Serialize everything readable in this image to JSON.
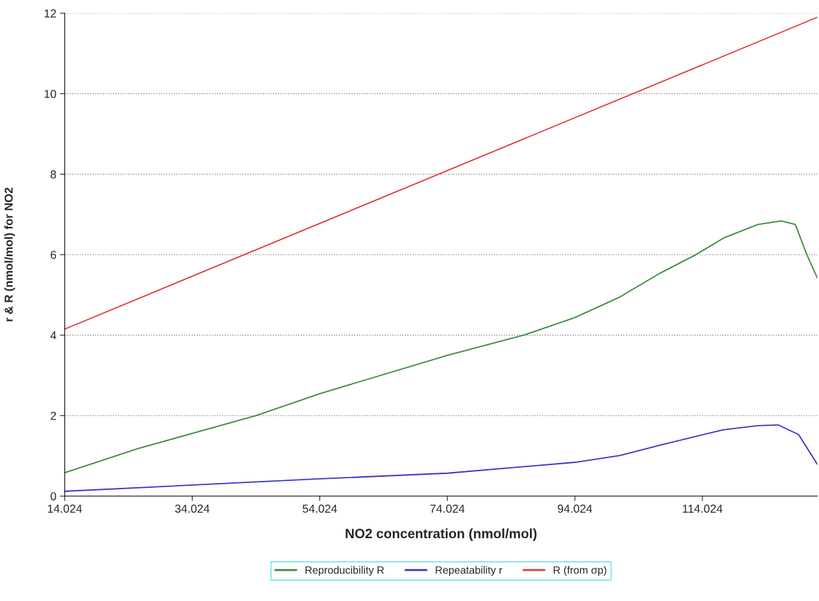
{
  "chart_data": {
    "type": "line",
    "xlabel": "NO2 concentration (nmol/mol)",
    "ylabel": "r & R (nmol/mol) for NO2",
    "xlim": [
      14.024,
      132.05
    ],
    "xticks": [
      14.024,
      34.024,
      54.024,
      74.024,
      94.024,
      114.024
    ],
    "ylim": [
      0,
      12
    ],
    "yticks": [
      0,
      2,
      4,
      6,
      8,
      10,
      12
    ],
    "grid": "y",
    "legend": "bottom",
    "line_style": "solid",
    "marker": "none",
    "series": [
      {
        "name": "Reproducibility R",
        "color": "#3a8a3a",
        "x": [
          14.024,
          25.5,
          44.0,
          54.09,
          74.07,
          86.0,
          94.05,
          101.1,
          107.5,
          113.0,
          117.3,
          122.7,
          126.4,
          128.6,
          130.4,
          132.05
        ],
        "values": [
          0.58,
          1.18,
          2.0,
          2.55,
          3.5,
          4.0,
          4.44,
          4.95,
          5.55,
          6.0,
          6.41,
          6.75,
          6.84,
          6.75,
          6.0,
          5.42
        ]
      },
      {
        "name": "Repeatability r",
        "color": "#3636c8",
        "x": [
          14.024,
          54.09,
          74.07,
          94.05,
          101.1,
          107.5,
          117.3,
          122.7,
          125.9,
          129.1,
          132.05
        ],
        "values": [
          0.12,
          0.43,
          0.57,
          0.84,
          1.01,
          1.27,
          1.65,
          1.75,
          1.77,
          1.53,
          0.79
        ]
      },
      {
        "name": "R (from σp)",
        "color": "#e03a3a",
        "x": [
          14.024,
          132.05
        ],
        "values": [
          4.15,
          11.9
        ]
      }
    ]
  }
}
